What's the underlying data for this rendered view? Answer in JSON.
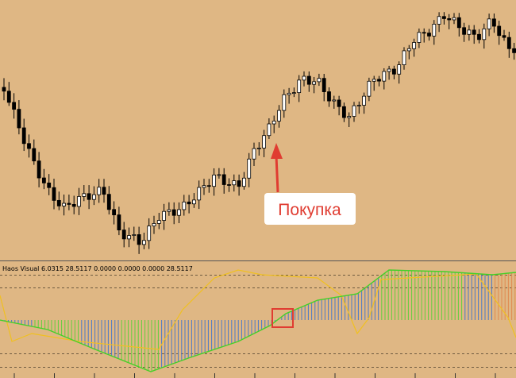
{
  "indicator": {
    "label": "Haos Visual 6.0315 28.5117 0.0000 0.0000 0.0000 28.5117"
  },
  "annotation": {
    "text": "Покупка"
  }
}
